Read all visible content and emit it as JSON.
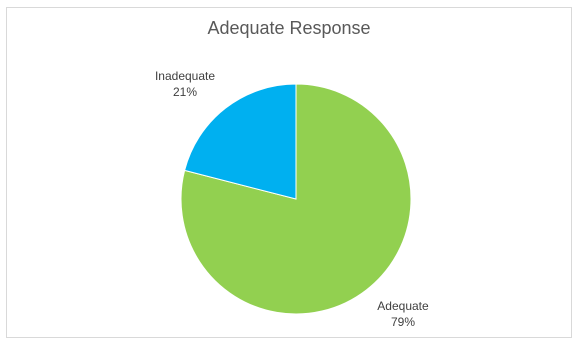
{
  "chart_data": {
    "type": "pie",
    "title": "Adequate Response",
    "slices": [
      {
        "label": "Adequate",
        "value": 79,
        "value_label": "79%",
        "color": "#92d050"
      },
      {
        "label": "Inadequate",
        "value": 21,
        "value_label": "21%",
        "color": "#00b0f0"
      }
    ],
    "start_angle_deg": 0,
    "direction": "clockwise"
  }
}
